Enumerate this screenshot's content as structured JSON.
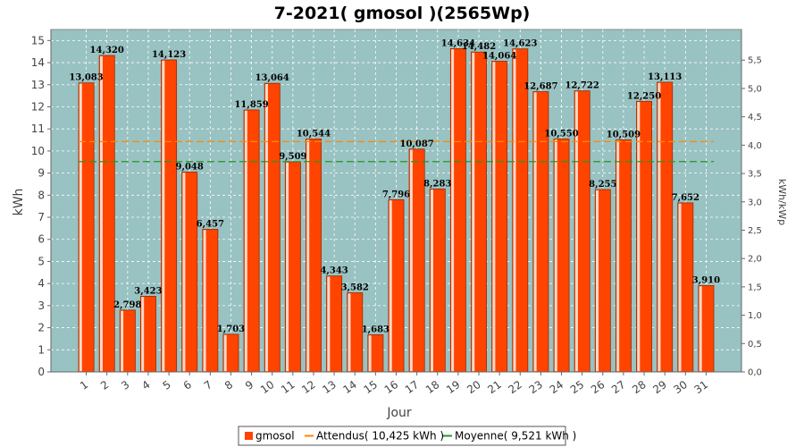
{
  "chart_data": {
    "type": "bar",
    "title": "7-2021( gmosol )(2565Wp)",
    "xlabel": "Jour",
    "ylabel": "kWh",
    "y2label": "kWh/kWp",
    "ylim": [
      0,
      15.5
    ],
    "y2lim": [
      0,
      6.04
    ],
    "yticks": [
      0,
      1,
      2,
      3,
      4,
      5,
      6,
      7,
      8,
      9,
      10,
      11,
      12,
      13,
      14,
      15
    ],
    "y2ticks": [
      "0,0",
      "0,5",
      "1,0",
      "1,5",
      "2,0",
      "2,5",
      "3,0",
      "3,5",
      "4,0",
      "4,5",
      "5,0",
      "5,5"
    ],
    "y2tick_values": [
      0,
      0.5,
      1.0,
      1.5,
      2.0,
      2.5,
      3.0,
      3.5,
      4.0,
      4.5,
      5.0,
      5.5
    ],
    "categories": [
      "1",
      "2",
      "3",
      "4",
      "5",
      "6",
      "7",
      "8",
      "9",
      "10",
      "11",
      "12",
      "13",
      "14",
      "15",
      "16",
      "17",
      "18",
      "19",
      "20",
      "21",
      "22",
      "23",
      "24",
      "25",
      "26",
      "27",
      "28",
      "29",
      "30",
      "31"
    ],
    "series": [
      {
        "name": "gmosol",
        "values": [
          13.083,
          14.32,
          2.798,
          3.423,
          14.123,
          9.048,
          6.457,
          1.703,
          11.859,
          13.064,
          9.509,
          10.544,
          4.343,
          3.582,
          1.683,
          7.796,
          10.087,
          8.283,
          14.634,
          14.482,
          14.064,
          14.623,
          12.687,
          10.55,
          12.722,
          8.255,
          10.509,
          12.25,
          13.113,
          7.652,
          3.91
        ],
        "labels": [
          "13,083",
          "14,320",
          "2,798",
          "3,423",
          "14,123",
          "9,048",
          "6,457",
          "1,703",
          "11,859",
          "13,064",
          "9,509",
          "10,544",
          "4,343",
          "3,582",
          "1,683",
          "7,796",
          "10,087",
          "8,283",
          "14,634",
          "14,482",
          "14,064",
          "14,623",
          "12,687",
          "10,550",
          "12,722",
          "8,255",
          "10,509",
          "12,250",
          "13,113",
          "7,652",
          "3,910"
        ]
      }
    ],
    "reference_lines": [
      {
        "name": "Attendus",
        "value": 10.425
      },
      {
        "name": "Moyenne",
        "value": 9.521
      }
    ],
    "legend": {
      "placement": "bottom",
      "items": [
        "gmosol",
        "Attendus( 10,425 kWh )",
        "Moyenne( 9,521 kWh )"
      ]
    },
    "grid": true,
    "colors": {
      "bar": "#ff4400",
      "bar_edge": "#9a2a00",
      "bar_highlight": "#ffd9c7",
      "plot_bg": "#99c2c2",
      "grid": "#ffffff",
      "expected_line": "#ff8800",
      "average_line": "#229922"
    }
  }
}
